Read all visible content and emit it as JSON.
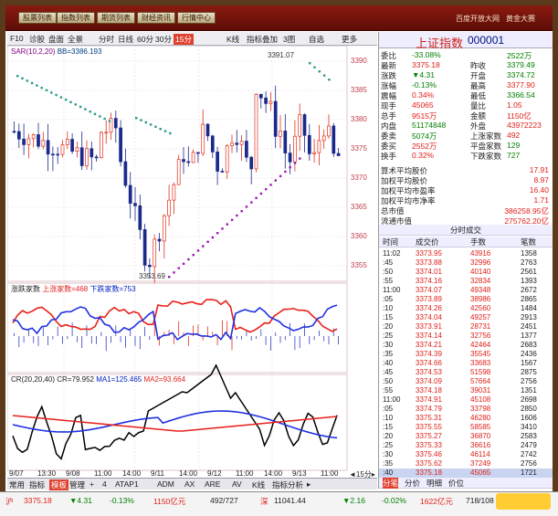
{
  "topbar": {
    "buttons": [
      "股票列表",
      "指数列表",
      "期货列表",
      "财经资讯",
      "行情中心"
    ],
    "right": [
      "百度开放大网",
      "黄金大赛"
    ]
  },
  "toolbar": {
    "items": [
      "F10",
      "诊股",
      "盘面",
      "全景",
      "分时",
      "日线",
      "60分",
      "30分",
      "15分",
      "K线",
      "指标叠加",
      "3图",
      "自选",
      "更多"
    ],
    "active": "15分"
  },
  "chart": {
    "main_legend": {
      "sar": "SAR(10,2,20)",
      "bb": "BB=3386.193"
    },
    "price_axis": [
      "3390",
      "3385",
      "3380",
      "3375",
      "3370",
      "3365",
      "3360",
      "3355"
    ],
    "high_label": "3391.07",
    "low_label": "3353.69",
    "ind1_legend": {
      "name": "涨跌家数",
      "up": "上涨家数=468",
      "down": "下跌家数=753"
    },
    "ind2_legend": {
      "name": "CR(20,20,40)",
      "cr": "CR=79.952",
      "ma1": "MA1=125.465",
      "ma2": "MA2=93.664"
    },
    "time_axis": [
      "9/07",
      "13:30",
      "9/08",
      "11:00",
      "14:00",
      "9/11",
      "14:00",
      "9/12",
      "11:00",
      "14:00",
      "9/13",
      "11:00"
    ],
    "time_tag": "◄15分▸",
    "bottom_tabs": [
      "常用",
      "指标",
      "模板",
      "管理",
      "+",
      "4",
      "ATAP1",
      "ADM",
      "AX",
      "ARE",
      "AV",
      "K线",
      "指标分析",
      "▸"
    ],
    "bottom_tab_active": "模板"
  },
  "quote": {
    "name": "上证指数",
    "code": "000001",
    "rows": [
      {
        "l": "委比",
        "v": "-33.08%",
        "vc": "green",
        "l2": "",
        "v2": "2522万",
        "v2c": "green"
      },
      {
        "l": "最新",
        "v": "3375.18",
        "vc": "red",
        "l2": "昨收",
        "v2": "3379.49",
        "v2c": "green"
      },
      {
        "l": "涨跌",
        "v": "▼4.31",
        "vc": "green",
        "l2": "开盘",
        "v2": "3374.72",
        "v2c": "green"
      },
      {
        "l": "涨幅",
        "v": "-0.13%",
        "vc": "green",
        "l2": "最高",
        "v2": "3377.90",
        "v2c": "red"
      },
      {
        "l": "震幅",
        "v": "0.34%",
        "vc": "red",
        "l2": "最低",
        "v2": "3366.54",
        "v2c": "green"
      },
      {
        "l": "现手",
        "v": "45065",
        "vc": "red",
        "l2": "量比",
        "v2": "1.05",
        "v2c": "red"
      },
      {
        "l": "总手",
        "v": "9515万",
        "vc": "red",
        "l2": "金额",
        "v2": "1150亿",
        "v2c": "red"
      },
      {
        "l": "内盘",
        "v": "51174848",
        "vc": "green",
        "l2": "外盘",
        "v2": "43972223",
        "v2c": "red"
      },
      {
        "l": "委卖",
        "v": "5074万",
        "vc": "green",
        "l2": "上涨家数",
        "v2": "492",
        "v2c": "red"
      },
      {
        "l": "委买",
        "v": "2552万",
        "vc": "red",
        "l2": "平盘家数",
        "v2": "129",
        "v2c": "green"
      },
      {
        "l": "换手",
        "v": "0.32%",
        "vc": "red",
        "l2": "下跌家数",
        "v2": "727",
        "v2c": "green"
      }
    ],
    "extra": [
      {
        "l": "算术平均股价",
        "v": "17.91"
      },
      {
        "l": "加权平均股价",
        "v": "8.97"
      },
      {
        "l": "加权平均市盈率",
        "v": "16.40"
      },
      {
        "l": "加权平均市净率",
        "v": "1.71"
      },
      {
        "l": "总市值",
        "v": "386258.95亿"
      },
      {
        "l": "流通市值",
        "v": "275762.20亿"
      }
    ]
  },
  "ticks": {
    "title": "分时成交",
    "headers": [
      "时间",
      "成交价",
      "手数",
      "笔数"
    ],
    "rows": [
      [
        "11:02",
        "3373.95",
        "43916",
        "1358"
      ],
      [
        ":45",
        "3373.88",
        "32996",
        "2763"
      ],
      [
        ":50",
        "3374.01",
        "40140",
        "2561"
      ],
      [
        ":55",
        "3374.16",
        "32834",
        "1393"
      ],
      [
        "11:00",
        "3374.07",
        "49348",
        "2672"
      ],
      [
        ":05",
        "3373.89",
        "38986",
        "2865"
      ],
      [
        ":10",
        "3374.26",
        "42560",
        "1484"
      ],
      [
        ":15",
        "3374.04",
        "49257",
        "2913"
      ],
      [
        ":20",
        "3373.91",
        "28731",
        "2451"
      ],
      [
        ":25",
        "3374.14",
        "32756",
        "1377"
      ],
      [
        ":30",
        "3374.21",
        "42464",
        "2683"
      ],
      [
        ":35",
        "3374.39",
        "35545",
        "2436"
      ],
      [
        ":40",
        "3374.66",
        "33683",
        "1567"
      ],
      [
        ":45",
        "3374.53",
        "51598",
        "2875"
      ],
      [
        ":50",
        "3374.09",
        "57664",
        "2756"
      ],
      [
        ":55",
        "3374.18",
        "39031",
        "1351"
      ],
      [
        "11:00",
        "3374.91",
        "45108",
        "2698"
      ],
      [
        ":05",
        "3374.79",
        "33798",
        "2850"
      ],
      [
        ":10",
        "3375.31",
        "46280",
        "1606"
      ],
      [
        ":15",
        "3375.55",
        "58585",
        "3410"
      ],
      [
        ":20",
        "3375.27",
        "36870",
        "2583"
      ],
      [
        ":25",
        "3375.33",
        "36616",
        "2479"
      ],
      [
        ":30",
        "3375.46",
        "46114",
        "2742"
      ],
      [
        ":35",
        "3375.62",
        "37249",
        "2756"
      ],
      [
        ":40",
        "3375.18",
        "45065",
        "1721"
      ]
    ],
    "foot": [
      "分笔",
      "分价",
      "明细",
      "价位"
    ]
  },
  "status": {
    "name": "沪",
    "price": "3375.18",
    "chg": "▼4.31",
    "pct": "-0.13%",
    "amt": "1150亿元",
    "ratio": "492/727",
    "t": "深",
    "price2": "11041.44",
    "chg2": "▼2.16",
    "pct2": "-0.02%",
    "amt2": "1622亿元",
    "ratio2": "718/108"
  }
}
